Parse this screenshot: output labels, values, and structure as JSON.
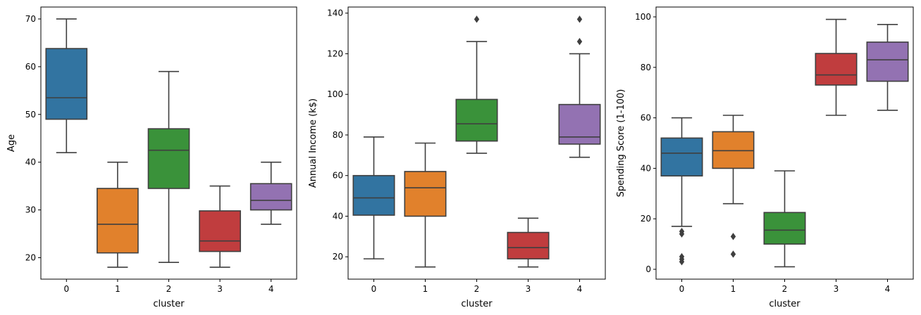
{
  "chart_data": [
    {
      "type": "box",
      "title": "",
      "xlabel": "cluster",
      "ylabel": "Age",
      "categories": [
        "0",
        "1",
        "2",
        "3",
        "4"
      ],
      "ylim": [
        15.5,
        72.5
      ],
      "yticks": [
        20,
        30,
        40,
        50,
        60,
        70
      ],
      "boxes": [
        {
          "category": "0",
          "whisker_low": 42,
          "q1": 49,
          "median": 53.5,
          "q3": 63.8,
          "whisker_high": 70,
          "outliers": []
        },
        {
          "category": "1",
          "whisker_low": 18,
          "q1": 21,
          "median": 27,
          "q3": 34.5,
          "whisker_high": 40,
          "outliers": []
        },
        {
          "category": "2",
          "whisker_low": 19,
          "q1": 34.5,
          "median": 42.5,
          "q3": 47,
          "whisker_high": 59,
          "outliers": []
        },
        {
          "category": "3",
          "whisker_low": 18,
          "q1": 21.3,
          "median": 23.5,
          "q3": 29.8,
          "whisker_high": 35,
          "outliers": []
        },
        {
          "category": "4",
          "whisker_low": 27,
          "q1": 30,
          "median": 32,
          "q3": 35.5,
          "whisker_high": 40,
          "outliers": []
        }
      ]
    },
    {
      "type": "box",
      "title": "",
      "xlabel": "cluster",
      "ylabel": "Annual Income (k$)",
      "categories": [
        "0",
        "1",
        "2",
        "3",
        "4"
      ],
      "ylim": [
        9,
        143
      ],
      "yticks": [
        20,
        40,
        60,
        80,
        100,
        120,
        140
      ],
      "boxes": [
        {
          "category": "0",
          "whisker_low": 19,
          "q1": 40.5,
          "median": 49,
          "q3": 60,
          "whisker_high": 79,
          "outliers": []
        },
        {
          "category": "1",
          "whisker_low": 15,
          "q1": 40,
          "median": 54,
          "q3": 62,
          "whisker_high": 76,
          "outliers": []
        },
        {
          "category": "2",
          "whisker_low": 71,
          "q1": 77,
          "median": 85.5,
          "q3": 97.5,
          "whisker_high": 126,
          "outliers": [
            137
          ]
        },
        {
          "category": "3",
          "whisker_low": 15,
          "q1": 19,
          "median": 24.5,
          "q3": 32,
          "whisker_high": 39,
          "outliers": []
        },
        {
          "category": "4",
          "whisker_low": 69,
          "q1": 75.5,
          "median": 79,
          "q3": 95,
          "whisker_high": 120,
          "outliers": [
            126,
            137
          ]
        }
      ]
    },
    {
      "type": "box",
      "title": "",
      "xlabel": "cluster",
      "ylabel": "Spending Score (1-100)",
      "categories": [
        "0",
        "1",
        "2",
        "3",
        "4"
      ],
      "ylim": [
        -3.9,
        103.9
      ],
      "yticks": [
        0,
        20,
        40,
        60,
        80,
        100
      ],
      "boxes": [
        {
          "category": "0",
          "whisker_low": 17,
          "q1": 37,
          "median": 46,
          "q3": 52,
          "whisker_high": 60,
          "outliers": [
            15,
            14,
            5,
            4,
            3
          ]
        },
        {
          "category": "1",
          "whisker_low": 26,
          "q1": 40,
          "median": 47,
          "q3": 54.5,
          "whisker_high": 61,
          "outliers": [
            13,
            6
          ]
        },
        {
          "category": "2",
          "whisker_low": 1,
          "q1": 10,
          "median": 15.5,
          "q3": 22.5,
          "whisker_high": 39,
          "outliers": []
        },
        {
          "category": "3",
          "whisker_low": 61,
          "q1": 73,
          "median": 77,
          "q3": 85.5,
          "whisker_high": 99,
          "outliers": []
        },
        {
          "category": "4",
          "whisker_low": 63,
          "q1": 74.5,
          "median": 83,
          "q3": 90,
          "whisker_high": 97,
          "outliers": []
        }
      ]
    }
  ],
  "palette": [
    "#3274a1",
    "#e1812c",
    "#3a923a",
    "#c03d3e",
    "#9372b2"
  ],
  "line_color": "#3f3f3f"
}
